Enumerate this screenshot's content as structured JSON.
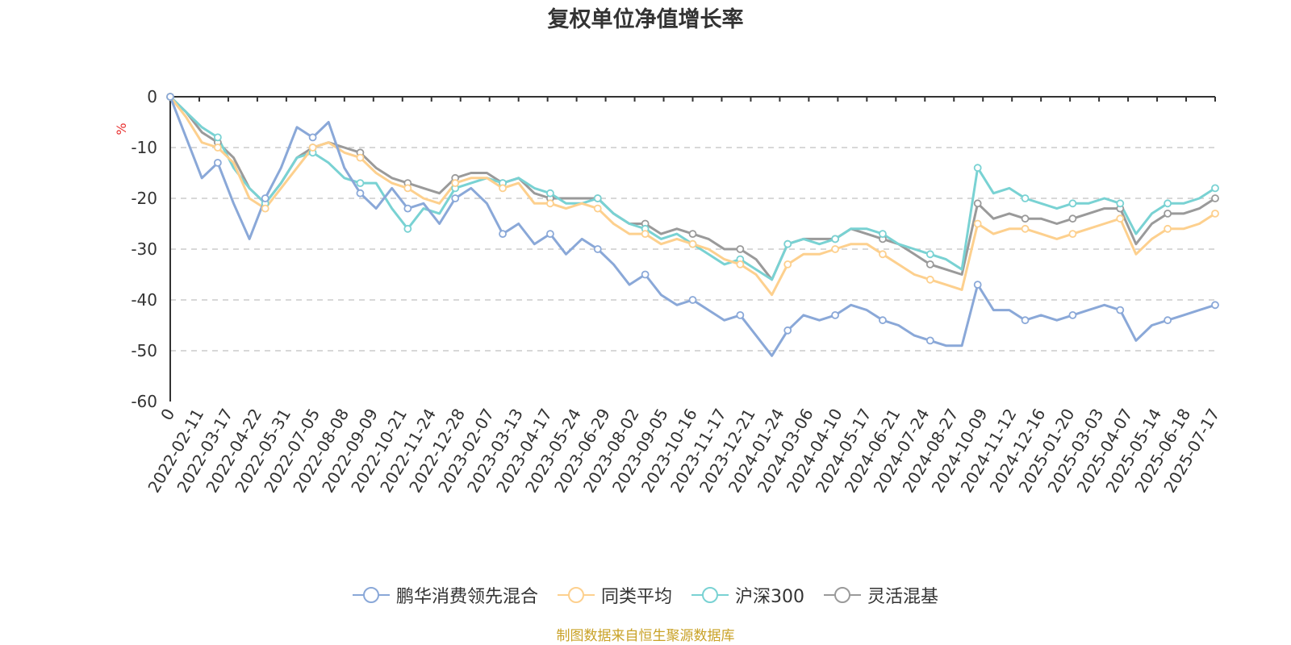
{
  "chart_data": {
    "type": "line",
    "title": "复权单位净值增长率",
    "y_unit": "%",
    "ylim": [
      -60,
      0
    ],
    "yticks": [
      0,
      -10,
      -20,
      -30,
      -40,
      -50,
      -60
    ],
    "x_ticks": [
      "0",
      "2022-02-11",
      "2022-03-17",
      "2022-04-22",
      "2022-05-31",
      "2022-07-05",
      "2022-08-08",
      "2022-09-09",
      "2022-10-21",
      "2022-11-24",
      "2022-12-28",
      "2023-02-07",
      "2023-03-13",
      "2023-04-17",
      "2023-05-24",
      "2023-06-29",
      "2023-08-02",
      "2023-09-05",
      "2023-10-16",
      "2023-11-17",
      "2023-12-21",
      "2024-01-24",
      "2024-03-06",
      "2024-04-10",
      "2024-05-17",
      "2024-06-21",
      "2024-07-24",
      "2024-08-27",
      "2024-10-09",
      "2024-11-12",
      "2024-12-16",
      "2025-01-20",
      "2025-03-03",
      "2025-04-07",
      "2025-05-14",
      "2025-06-18",
      "2025-07-17"
    ],
    "grid": true,
    "legend_position": "bottom",
    "series": [
      {
        "name": "鹏华消费领先混合",
        "color": "#8aa8d8",
        "values": [
          0,
          -8,
          -16,
          -13,
          -21,
          -28,
          -20,
          -14,
          -6,
          -8,
          -5,
          -14,
          -19,
          -22,
          -18,
          -22,
          -21,
          -25,
          -20,
          -18,
          -21,
          -27,
          -25,
          -29,
          -27,
          -31,
          -28,
          -30,
          -33,
          -37,
          -35,
          -39,
          -41,
          -40,
          -42,
          -44,
          -43,
          -47,
          -51,
          -46,
          -43,
          -44,
          -43,
          -41,
          -42,
          -44,
          -45,
          -47,
          -48,
          -49,
          -49,
          -37,
          -42,
          -42,
          -44,
          -43,
          -44,
          -43,
          -42,
          -41,
          -42,
          -48,
          -45,
          -44,
          -43,
          -42,
          -41
        ]
      },
      {
        "name": "同类平均",
        "color": "#fdd08e",
        "values": [
          0,
          -4,
          -9,
          -10,
          -13,
          -20,
          -22,
          -18,
          -14,
          -10,
          -9,
          -11,
          -12,
          -15,
          -17,
          -18,
          -20,
          -21,
          -17,
          -16,
          -16,
          -18,
          -17,
          -21,
          -21,
          -22,
          -21,
          -22,
          -25,
          -27,
          -27,
          -29,
          -28,
          -29,
          -30,
          -32,
          -33,
          -35,
          -39,
          -33,
          -31,
          -31,
          -30,
          -29,
          -29,
          -31,
          -33,
          -35,
          -36,
          -37,
          -38,
          -25,
          -27,
          -26,
          -26,
          -27,
          -28,
          -27,
          -26,
          -25,
          -24,
          -31,
          -28,
          -26,
          -26,
          -25,
          -23
        ]
      },
      {
        "name": "沪深300",
        "color": "#79d2d3",
        "values": [
          0,
          -3,
          -6,
          -8,
          -14,
          -18,
          -21,
          -17,
          -12,
          -11,
          -13,
          -16,
          -17,
          -17,
          -22,
          -26,
          -22,
          -23,
          -18,
          -17,
          -16,
          -17,
          -16,
          -18,
          -19,
          -21,
          -21,
          -20,
          -23,
          -25,
          -26,
          -28,
          -27,
          -29,
          -31,
          -33,
          -32,
          -34,
          -36,
          -29,
          -28,
          -29,
          -28,
          -26,
          -26,
          -27,
          -29,
          -30,
          -31,
          -32,
          -34,
          -14,
          -19,
          -18,
          -20,
          -21,
          -22,
          -21,
          -21,
          -20,
          -21,
          -27,
          -23,
          -21,
          -21,
          -20,
          -18
        ]
      },
      {
        "name": "灵活混基",
        "color": "#9a9a9a",
        "values": [
          0,
          -3,
          -7,
          -9,
          -12,
          -18,
          -21,
          -17,
          -12,
          -10,
          -9,
          -10,
          -11,
          -14,
          -16,
          -17,
          -18,
          -19,
          -16,
          -15,
          -15,
          -17,
          -16,
          -19,
          -20,
          -20,
          -20,
          -20,
          -23,
          -25,
          -25,
          -27,
          -26,
          -27,
          -28,
          -30,
          -30,
          -32,
          -36,
          -29,
          -28,
          -28,
          -28,
          -26,
          -27,
          -28,
          -29,
          -31,
          -33,
          -34,
          -35,
          -21,
          -24,
          -23,
          -24,
          -24,
          -25,
          -24,
          -23,
          -22,
          -22,
          -29,
          -25,
          -23,
          -23,
          -22,
          -20
        ]
      }
    ]
  },
  "source_text": "制图数据来自恒生聚源数据库"
}
